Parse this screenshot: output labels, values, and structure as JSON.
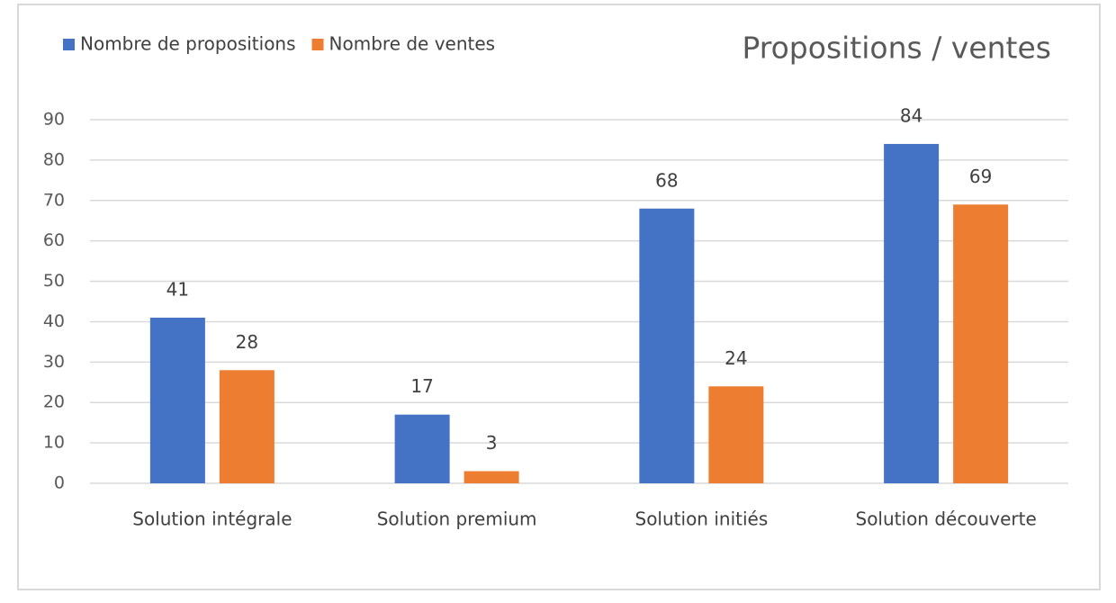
{
  "chart_data": {
    "type": "bar",
    "title": "Propositions / ventes",
    "categories": [
      "Solution intégrale",
      "Solution premium",
      "Solution initiés",
      "Solution découverte"
    ],
    "series": [
      {
        "name": "Nombre de propositions",
        "color": "#4472c4",
        "values": [
          41,
          17,
          68,
          84
        ]
      },
      {
        "name": "Nombre de ventes",
        "color": "#ed7d31",
        "values": [
          28,
          3,
          24,
          69
        ]
      }
    ],
    "ylim": [
      0,
      90
    ],
    "yticks": [
      0,
      10,
      20,
      30,
      40,
      50,
      60,
      70,
      80,
      90
    ],
    "grid": true,
    "legend": "top-left"
  }
}
